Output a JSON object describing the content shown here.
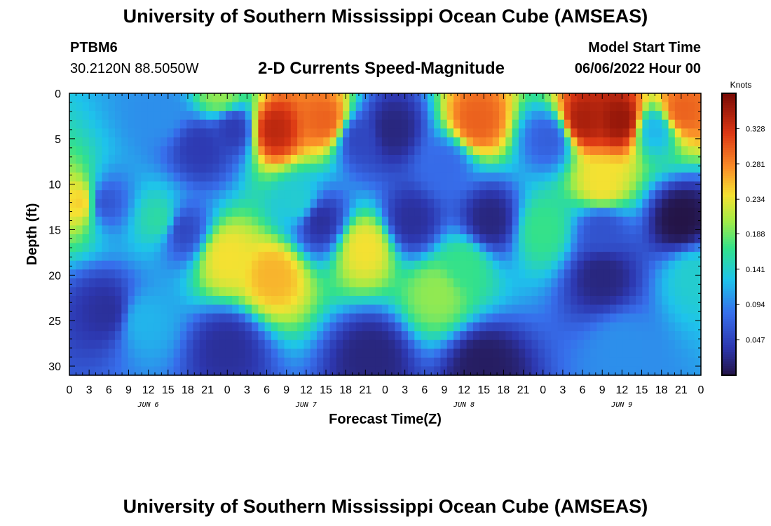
{
  "header": {
    "title": "University of Southern Mississippi Ocean Cube (AMSEAS)",
    "station": "PTBM6",
    "coordinates": "30.2120N  88.5050W",
    "subtitle": "2-D Currents Speed-Magnitude",
    "model_start_label": "Model Start Time",
    "model_start_value": "06/06/2022 Hour 00"
  },
  "footer": {
    "title": "University of Southern Mississippi Ocean Cube (AMSEAS)"
  },
  "chart_data": {
    "type": "heatmap",
    "title": "2-D Currents Speed-Magnitude",
    "xlabel": "Forecast Time(Z)",
    "ylabel": "Depth (ft)",
    "x_tick_labels": [
      "0",
      "3",
      "6",
      "9",
      "12",
      "15",
      "18",
      "21",
      "0",
      "3",
      "6",
      "9",
      "12",
      "15",
      "18",
      "21",
      "0",
      "3",
      "6",
      "9",
      "12",
      "15",
      "18",
      "21",
      "0",
      "3",
      "6",
      "9",
      "12",
      "15",
      "18",
      "21",
      "0"
    ],
    "x_range_hours": [
      0,
      96
    ],
    "day_labels": [
      {
        "label": "JUN 6",
        "hour": 12
      },
      {
        "label": "JUN 7",
        "hour": 36
      },
      {
        "label": "JUN 8",
        "hour": 60
      },
      {
        "label": "JUN 9",
        "hour": 84
      }
    ],
    "y_ticks": [
      0,
      5,
      10,
      15,
      20,
      25,
      30
    ],
    "y_range_ft": [
      0,
      31
    ],
    "y_inverted": true,
    "colorbar": {
      "label": "Knots",
      "ticks": [
        0.047,
        0.094,
        0.141,
        0.188,
        0.234,
        0.281,
        0.328
      ],
      "range": [
        0.0,
        0.375
      ]
    },
    "value_hotspots_knots": [
      {
        "hour": 2,
        "depth_ft": 12,
        "value": 0.25
      },
      {
        "hour": 5,
        "depth_ft": 12,
        "value": 0.06
      },
      {
        "hour": 6,
        "depth_ft": 24,
        "value": 0.03
      },
      {
        "hour": 11,
        "depth_ft": 25,
        "value": 0.12
      },
      {
        "hour": 14,
        "depth_ft": 2,
        "value": 0.1
      },
      {
        "hour": 14,
        "depth_ft": 14,
        "value": 0.16
      },
      {
        "hour": 17,
        "depth_ft": 15,
        "value": 0.05
      },
      {
        "hour": 20,
        "depth_ft": 6,
        "value": 0.04
      },
      {
        "hour": 23,
        "depth_ft": 0,
        "value": 0.2
      },
      {
        "hour": 25,
        "depth_ft": 4,
        "value": 0.04
      },
      {
        "hour": 24,
        "depth_ft": 18,
        "value": 0.24
      },
      {
        "hour": 31,
        "depth_ft": 20,
        "value": 0.26
      },
      {
        "hour": 24,
        "depth_ft": 28,
        "value": 0.03
      },
      {
        "hour": 31,
        "depth_ft": 4,
        "value": 0.34
      },
      {
        "hour": 39,
        "depth_ft": 3,
        "value": 0.3
      },
      {
        "hour": 35,
        "depth_ft": 12,
        "value": 0.14
      },
      {
        "hour": 38,
        "depth_ft": 14,
        "value": 0.03
      },
      {
        "hour": 45,
        "depth_ft": 17,
        "value": 0.24
      },
      {
        "hour": 44,
        "depth_ft": 5,
        "value": 0.05
      },
      {
        "hour": 49,
        "depth_ft": 4,
        "value": 0.02
      },
      {
        "hour": 46,
        "depth_ft": 29,
        "value": 0.02
      },
      {
        "hour": 52,
        "depth_ft": 14,
        "value": 0.03
      },
      {
        "hour": 56,
        "depth_ft": 22,
        "value": 0.2
      },
      {
        "hour": 57,
        "depth_ft": 8,
        "value": 0.08
      },
      {
        "hour": 62,
        "depth_ft": 3,
        "value": 0.3
      },
      {
        "hour": 60,
        "depth_ft": 19,
        "value": 0.17
      },
      {
        "hour": 64,
        "depth_ft": 14,
        "value": 0.02
      },
      {
        "hour": 63,
        "depth_ft": 30,
        "value": 0.01
      },
      {
        "hour": 72,
        "depth_ft": 15,
        "value": 0.17
      },
      {
        "hour": 73,
        "depth_ft": 5,
        "value": 0.07
      },
      {
        "hour": 78,
        "depth_ft": 3,
        "value": 0.35
      },
      {
        "hour": 81,
        "depth_ft": 10,
        "value": 0.24
      },
      {
        "hour": 84,
        "depth_ft": 3,
        "value": 0.36
      },
      {
        "hour": 81,
        "depth_ft": 15,
        "value": 0.06
      },
      {
        "hour": 81,
        "depth_ft": 20,
        "value": 0.02
      },
      {
        "hour": 84,
        "depth_ft": 28,
        "value": 0.1
      },
      {
        "hour": 89,
        "depth_ft": 4,
        "value": 0.12
      },
      {
        "hour": 93,
        "depth_ft": 14,
        "value": 0.0
      },
      {
        "hour": 93,
        "depth_ft": 2,
        "value": 0.3
      },
      {
        "hour": 95,
        "depth_ft": 20,
        "value": 0.14
      }
    ],
    "background_value_knots": 0.08
  }
}
